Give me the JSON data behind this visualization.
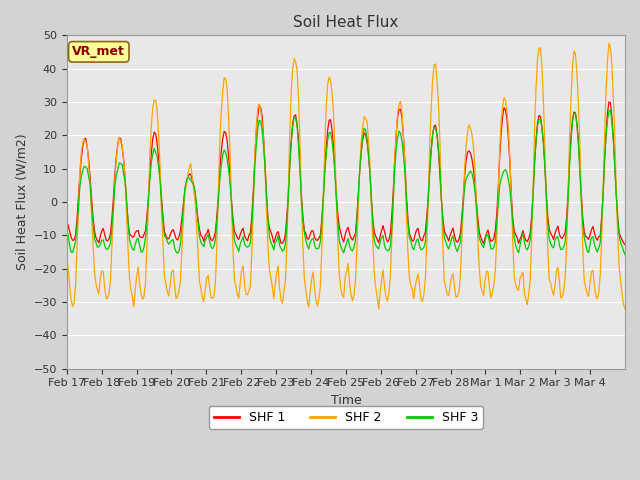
{
  "title": "Soil Heat Flux",
  "ylabel": "Soil Heat Flux (W/m2)",
  "xlabel": "Time",
  "ylim": [
    -50,
    50
  ],
  "yticks": [
    -50,
    -40,
    -30,
    -20,
    -10,
    0,
    10,
    20,
    30,
    40,
    50
  ],
  "colors": {
    "SHF 1": "#FF0000",
    "SHF 2": "#FFA500",
    "SHF 3": "#00CC00"
  },
  "legend_label": "VR_met",
  "legend_box_color": "#FFFF99",
  "legend_text_color": "#8B0000",
  "fig_bg_color": "#D3D3D3",
  "axes_bg_color": "#E8E8E8",
  "n_days": 16,
  "xtick_labels": [
    "Feb 17",
    "Feb 18",
    "Feb 19",
    "Feb 20",
    "Feb 21",
    "Feb 22",
    "Feb 23",
    "Feb 24",
    "Feb 25",
    "Feb 26",
    "Feb 27",
    "Feb 28",
    "Mar 1",
    "Mar 2",
    "Mar 3",
    "Mar 4"
  ],
  "day_amps1": [
    20,
    20,
    21,
    8,
    22,
    30,
    28,
    25,
    21,
    30,
    23,
    16,
    29,
    28,
    29,
    30
  ],
  "day_amps2": [
    20,
    19,
    33,
    10,
    40,
    30,
    46,
    41,
    27,
    30,
    44,
    24,
    32,
    49,
    45,
    49
  ],
  "day_amps3": [
    12,
    12,
    16,
    8,
    15,
    26,
    26,
    22,
    22,
    22,
    23,
    10,
    10,
    27,
    27,
    28
  ],
  "night_base1": -12,
  "night_base2": -30,
  "night_base3": -15
}
